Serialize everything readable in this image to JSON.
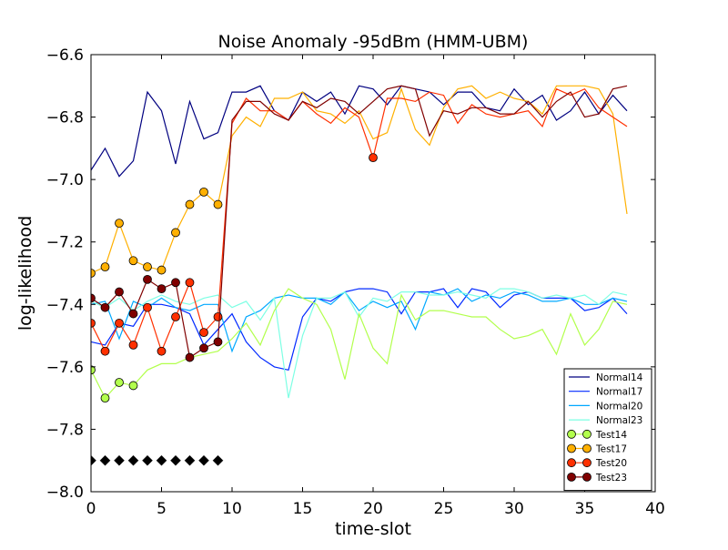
{
  "chart_data": {
    "type": "line",
    "title": "Noise Anomaly -95dBm (HMM-UBM)",
    "xlabel": "time-slot",
    "ylabel": "log-likelihood",
    "xlim": [
      0,
      40
    ],
    "ylim": [
      -8.0,
      -6.6
    ],
    "x_ticks": [
      0,
      5,
      10,
      15,
      20,
      25,
      30,
      35,
      40
    ],
    "x_tick_labels": [
      "0",
      "5",
      "10",
      "15",
      "20",
      "25",
      "30",
      "35",
      "40"
    ],
    "y_ticks": [
      -8.0,
      -7.8,
      -7.6,
      -7.4,
      -7.2,
      -7.0,
      -6.8,
      -6.6
    ],
    "y_tick_labels": [
      "−8.0",
      "−7.8",
      "−7.6",
      "−7.4",
      "−7.2",
      "−7.0",
      "−6.8",
      "−6.6"
    ],
    "grid": false,
    "legend_position": "lower-right",
    "series": [
      {
        "name": "Normal14",
        "color": "#000080",
        "marker": "none",
        "x": [
          0,
          1,
          2,
          3,
          4,
          5,
          6,
          7,
          8,
          9,
          10,
          11,
          12,
          13,
          14,
          15,
          16,
          17,
          18,
          19,
          20,
          21,
          22,
          23,
          24,
          25,
          26,
          27,
          28,
          29,
          30,
          31,
          32,
          33,
          34,
          35,
          36,
          37,
          38
        ],
        "y": [
          -6.97,
          -6.9,
          -6.99,
          -6.94,
          -6.72,
          -6.78,
          -6.95,
          -6.75,
          -6.87,
          -6.85,
          -6.72,
          -6.72,
          -6.7,
          -6.78,
          -6.81,
          -6.72,
          -6.75,
          -6.72,
          -6.79,
          -6.7,
          -6.71,
          -6.76,
          -6.7,
          -6.71,
          -6.72,
          -6.76,
          -6.72,
          -6.72,
          -6.77,
          -6.78,
          -6.71,
          -6.76,
          -6.73,
          -6.81,
          -6.78,
          -6.72,
          -6.79,
          -6.73,
          -6.78
        ]
      },
      {
        "name": "Normal17",
        "color": "#0028ff",
        "marker": "none",
        "x": [
          0,
          1,
          2,
          3,
          4,
          5,
          6,
          7,
          8,
          9,
          10,
          11,
          12,
          13,
          14,
          15,
          16,
          17,
          18,
          19,
          20,
          21,
          22,
          23,
          24,
          25,
          26,
          27,
          28,
          29,
          30,
          31,
          32,
          33,
          34,
          35,
          36,
          37,
          38
        ],
        "y": [
          -7.52,
          -7.53,
          -7.46,
          -7.47,
          -7.4,
          -7.4,
          -7.41,
          -7.43,
          -7.53,
          -7.48,
          -7.43,
          -7.52,
          -7.57,
          -7.6,
          -7.61,
          -7.44,
          -7.38,
          -7.39,
          -7.36,
          -7.35,
          -7.35,
          -7.36,
          -7.43,
          -7.36,
          -7.36,
          -7.35,
          -7.41,
          -7.35,
          -7.36,
          -7.41,
          -7.37,
          -7.36,
          -7.38,
          -7.38,
          -7.38,
          -7.42,
          -7.41,
          -7.38,
          -7.43
        ]
      },
      {
        "name": "Normal20",
        "color": "#00a8ff",
        "marker": "none",
        "x": [
          0,
          1,
          2,
          3,
          4,
          5,
          6,
          7,
          8,
          9,
          10,
          11,
          12,
          13,
          14,
          15,
          16,
          17,
          18,
          19,
          20,
          21,
          22,
          23,
          24,
          25,
          26,
          27,
          28,
          29,
          30,
          31,
          32,
          33,
          34,
          35,
          36,
          37,
          38
        ],
        "y": [
          -7.4,
          -7.39,
          -7.51,
          -7.39,
          -7.41,
          -7.38,
          -7.41,
          -7.42,
          -7.4,
          -7.4,
          -7.55,
          -7.44,
          -7.42,
          -7.38,
          -7.37,
          -7.38,
          -7.38,
          -7.4,
          -7.36,
          -7.42,
          -7.39,
          -7.41,
          -7.39,
          -7.48,
          -7.36,
          -7.37,
          -7.35,
          -7.39,
          -7.37,
          -7.38,
          -7.36,
          -7.37,
          -7.39,
          -7.39,
          -7.38,
          -7.4,
          -7.4,
          -7.38,
          -7.39
        ]
      },
      {
        "name": "Normal23",
        "color": "#7dffe4",
        "marker": "none",
        "x": [
          0,
          1,
          2,
          3,
          4,
          5,
          6,
          7,
          8,
          9,
          10,
          11,
          12,
          13,
          14,
          15,
          16,
          17,
          18,
          19,
          20,
          21,
          22,
          23,
          24,
          25,
          26,
          27,
          28,
          29,
          30,
          31,
          32,
          33,
          34,
          35,
          36,
          37,
          38
        ],
        "y": [
          -7.39,
          -7.41,
          -7.38,
          -7.42,
          -7.39,
          -7.37,
          -7.39,
          -7.4,
          -7.38,
          -7.37,
          -7.41,
          -7.39,
          -7.45,
          -7.38,
          -7.7,
          -7.5,
          -7.38,
          -7.38,
          -7.36,
          -7.44,
          -7.38,
          -7.39,
          -7.36,
          -7.36,
          -7.37,
          -7.37,
          -7.36,
          -7.37,
          -7.38,
          -7.35,
          -7.35,
          -7.36,
          -7.38,
          -7.37,
          -7.38,
          -7.37,
          -7.4,
          -7.36,
          -7.37
        ]
      },
      {
        "name": "Test14",
        "color": "#b2ff4c",
        "marker": "circle",
        "marker_count": 4,
        "x": [
          0,
          1,
          2,
          3,
          4,
          5,
          6,
          7,
          8,
          9,
          10,
          11,
          12,
          13,
          14,
          15,
          16,
          17,
          18,
          19,
          20,
          21,
          22,
          23,
          24,
          25,
          26,
          27,
          28,
          29,
          30,
          31,
          32,
          33,
          34,
          35,
          36,
          37,
          38
        ],
        "y": [
          -7.61,
          -7.7,
          -7.65,
          -7.66,
          -7.61,
          -7.59,
          -7.59,
          -7.57,
          -7.56,
          -7.55,
          -7.51,
          -7.46,
          -7.53,
          -7.42,
          -7.35,
          -7.38,
          -7.4,
          -7.48,
          -7.64,
          -7.43,
          -7.54,
          -7.59,
          -7.37,
          -7.45,
          -7.42,
          -7.42,
          -7.43,
          -7.44,
          -7.44,
          -7.48,
          -7.51,
          -7.5,
          -7.48,
          -7.56,
          -7.43,
          -7.53,
          -7.48,
          -7.39,
          -7.4
        ]
      },
      {
        "name": "Test17",
        "color": "#ffb000",
        "marker": "circle",
        "marker_count": 10,
        "x": [
          0,
          1,
          2,
          3,
          4,
          5,
          6,
          7,
          8,
          9,
          10,
          11,
          12,
          13,
          14,
          15,
          16,
          17,
          18,
          19,
          20,
          21,
          22,
          23,
          24,
          25,
          26,
          27,
          28,
          29,
          30,
          31,
          32,
          33,
          34,
          35,
          36,
          37,
          38
        ],
        "y": [
          -7.3,
          -7.28,
          -7.14,
          -7.26,
          -7.28,
          -7.29,
          -7.17,
          -7.08,
          -7.04,
          -7.08,
          -6.86,
          -6.8,
          -6.83,
          -6.74,
          -6.74,
          -6.72,
          -6.78,
          -6.79,
          -6.82,
          -6.78,
          -6.87,
          -6.85,
          -6.71,
          -6.84,
          -6.89,
          -6.77,
          -6.71,
          -6.7,
          -6.74,
          -6.72,
          -6.74,
          -6.75,
          -6.79,
          -6.7,
          -6.7,
          -6.7,
          -6.71,
          -6.79,
          -7.11
        ]
      },
      {
        "name": "Test20",
        "color": "#ff3000",
        "marker": "circle",
        "marker_count": 10,
        "extra_marker_x": [
          20
        ],
        "x": [
          0,
          1,
          2,
          3,
          4,
          5,
          6,
          7,
          8,
          9,
          10,
          11,
          12,
          13,
          14,
          15,
          16,
          17,
          18,
          19,
          20,
          21,
          22,
          23,
          24,
          25,
          26,
          27,
          28,
          29,
          30,
          31,
          32,
          33,
          34,
          35,
          36,
          37,
          38
        ],
        "y": [
          -7.46,
          -7.55,
          -7.46,
          -7.53,
          -7.41,
          -7.55,
          -7.44,
          -7.33,
          -7.49,
          -7.44,
          -6.82,
          -6.74,
          -6.78,
          -6.78,
          -6.81,
          -6.75,
          -6.79,
          -6.82,
          -6.77,
          -6.8,
          -6.93,
          -6.74,
          -6.74,
          -6.75,
          -6.72,
          -6.73,
          -6.82,
          -6.76,
          -6.79,
          -6.8,
          -6.79,
          -6.78,
          -6.83,
          -6.71,
          -6.73,
          -6.71,
          -6.77,
          -6.8,
          -6.83
        ]
      },
      {
        "name": "Test23",
        "color": "#800000",
        "marker": "circle",
        "marker_count": 10,
        "x": [
          0,
          1,
          2,
          3,
          4,
          5,
          6,
          7,
          8,
          9,
          10,
          11,
          12,
          13,
          14,
          15,
          16,
          17,
          18,
          19,
          20,
          21,
          22,
          23,
          24,
          25,
          26,
          27,
          28,
          29,
          30,
          31,
          32,
          33,
          34,
          35,
          36,
          37,
          38
        ],
        "y": [
          -7.38,
          -7.41,
          -7.36,
          -7.43,
          -7.32,
          -7.35,
          -7.33,
          -7.57,
          -7.54,
          -7.52,
          -6.81,
          -6.75,
          -6.75,
          -6.79,
          -6.81,
          -6.75,
          -6.77,
          -6.74,
          -6.75,
          -6.79,
          -6.75,
          -6.71,
          -6.7,
          -6.71,
          -6.86,
          -6.78,
          -6.79,
          -6.77,
          -6.77,
          -6.79,
          -6.79,
          -6.75,
          -6.8,
          -6.75,
          -6.72,
          -6.8,
          -6.79,
          -6.71,
          -6.7
        ]
      },
      {
        "color": "#000000",
        "marker": "diamond",
        "line": "none",
        "x": [
          0,
          1,
          2,
          3,
          4,
          5,
          6,
          7,
          8,
          9
        ],
        "y": [
          -7.9,
          -7.9,
          -7.9,
          -7.9,
          -7.9,
          -7.9,
          -7.9,
          -7.9,
          -7.9,
          -7.9
        ]
      }
    ]
  }
}
